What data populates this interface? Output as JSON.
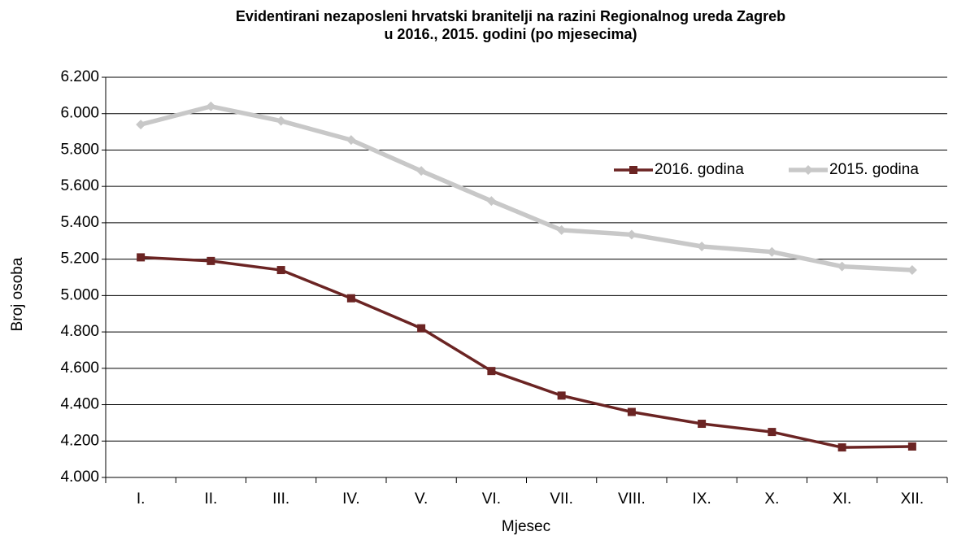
{
  "chart_data": {
    "type": "line",
    "title": [
      "Evidentirani nezaposleni hrvatski branitelji na razini Regionalnog ureda Zagreb",
      "u 2016., 2015. godini (po mjesecima)"
    ],
    "x_label": "Mjesec",
    "y_label": "Broj osoba",
    "categories": [
      "I.",
      "II.",
      "III.",
      "IV.",
      "V.",
      "VI.",
      "VII.",
      "VIII.",
      "IX.",
      "X.",
      "XI.",
      "XII."
    ],
    "series": [
      {
        "name": "2016. godina",
        "color": "#6b2423",
        "marker": "square",
        "values": [
          5210,
          5190,
          5140,
          4985,
          4820,
          4585,
          4450,
          4360,
          4295,
          4250,
          4165,
          4170
        ]
      },
      {
        "name": "2015. godina",
        "color": "#c8c8c8",
        "marker": "diamond",
        "values": [
          5940,
          6040,
          5960,
          5855,
          5685,
          5520,
          5360,
          5335,
          5270,
          5240,
          5160,
          5140
        ]
      }
    ],
    "ylim": [
      4000,
      6200
    ],
    "yticks": [
      {
        "value": 4000,
        "label": "4.000"
      },
      {
        "value": 4200,
        "label": "4.200"
      },
      {
        "value": 4400,
        "label": "4.400"
      },
      {
        "value": 4600,
        "label": "4.600"
      },
      {
        "value": 4800,
        "label": "4.800"
      },
      {
        "value": 5000,
        "label": "5.000"
      },
      {
        "value": 5200,
        "label": "5.200"
      },
      {
        "value": 5400,
        "label": "5.400"
      },
      {
        "value": 5600,
        "label": "5.600"
      },
      {
        "value": 5800,
        "label": "5.800"
      },
      {
        "value": 6000,
        "label": "6.000"
      },
      {
        "value": 6200,
        "label": "6.200"
      }
    ],
    "grid": true,
    "legend": "top-right"
  }
}
